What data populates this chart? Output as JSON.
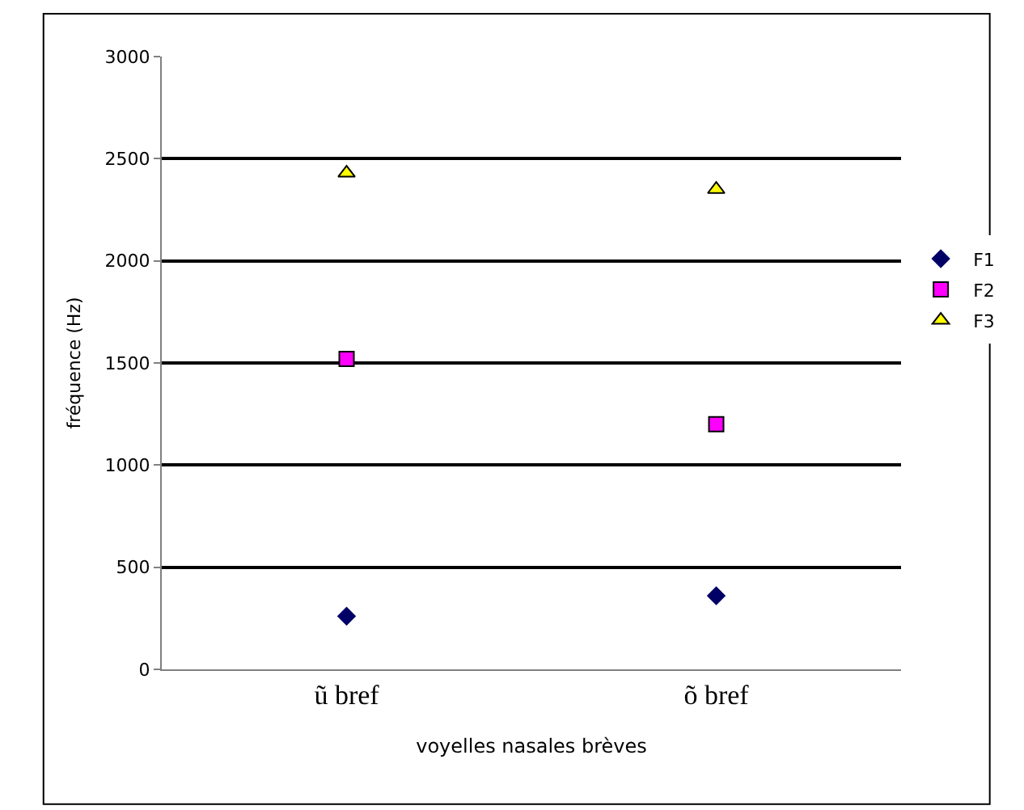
{
  "chart_data": {
    "type": "scatter",
    "xlabel": "voyelles nasales brèves",
    "ylabel": "fréquence (Hz)",
    "categories": [
      "ũ bref",
      "õ bref"
    ],
    "series": [
      {
        "name": "F1",
        "color": "#000066",
        "marker": "diamond",
        "values": [
          260,
          360
        ]
      },
      {
        "name": "F2",
        "color": "#ff00ff",
        "marker": "square",
        "values": [
          1520,
          1200
        ]
      },
      {
        "name": "F3",
        "color": "#ffff00",
        "marker": "triangle",
        "values": [
          2430,
          2350
        ]
      }
    ],
    "ylim": [
      0,
      3000
    ],
    "yticks": [
      0,
      500,
      1000,
      1500,
      2000,
      2500,
      3000
    ],
    "grid": "y",
    "legend": "right"
  }
}
